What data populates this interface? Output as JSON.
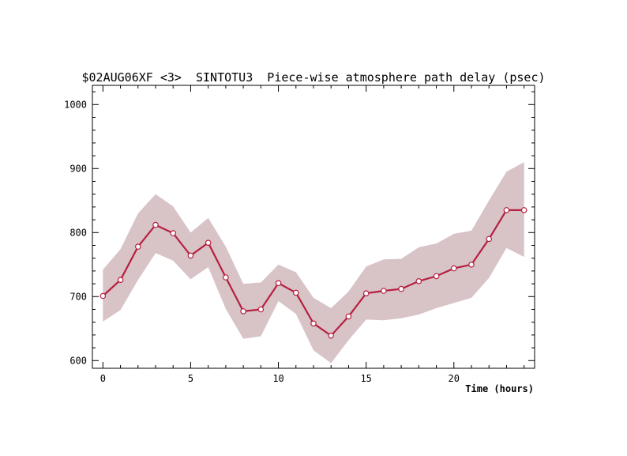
{
  "chart_data": {
    "type": "line",
    "title": "$02AUG06XF <3>  SINTOTU3  Piece-wise atmosphere path delay (psec)",
    "xlabel": "Time (hours)",
    "ylabel": "",
    "xlim": [
      -0.6,
      24.6
    ],
    "ylim": [
      588,
      1030
    ],
    "xticks": [
      0,
      5,
      10,
      15,
      20
    ],
    "xtick_labels": [
      "0",
      "5",
      "10",
      "15",
      "20"
    ],
    "yticks": [
      600,
      700,
      800,
      900,
      1000
    ],
    "ytick_labels": [
      "600",
      "700",
      "800",
      "900",
      "1000"
    ],
    "grid": false,
    "legend": "none",
    "colors": {
      "line": "#b5203f",
      "band": "#d8c3c7",
      "marker_fill": "#ffffff"
    },
    "series": [
      {
        "x": [
          0,
          1,
          2,
          3,
          4,
          5,
          6,
          7,
          8,
          9,
          10,
          11,
          12,
          13,
          14,
          15,
          16,
          17,
          18,
          19,
          20,
          21,
          22,
          23,
          24
        ],
        "values": [
          701,
          726,
          778,
          812,
          799,
          764,
          784,
          730,
          677,
          680,
          721,
          706,
          658,
          639,
          669,
          705,
          709,
          712,
          724,
          732,
          744,
          750,
          790,
          835,
          835
        ],
        "upper": [
          742,
          774,
          830,
          860,
          841,
          800,
          823,
          778,
          720,
          722,
          750,
          738,
          698,
          682,
          708,
          747,
          758,
          759,
          777,
          783,
          798,
          803,
          850,
          895,
          910
        ],
        "lower": [
          661,
          679,
          726,
          768,
          756,
          727,
          746,
          681,
          634,
          638,
          693,
          673,
          616,
          596,
          632,
          664,
          663,
          666,
          672,
          682,
          690,
          698,
          729,
          776,
          762
        ]
      }
    ]
  }
}
